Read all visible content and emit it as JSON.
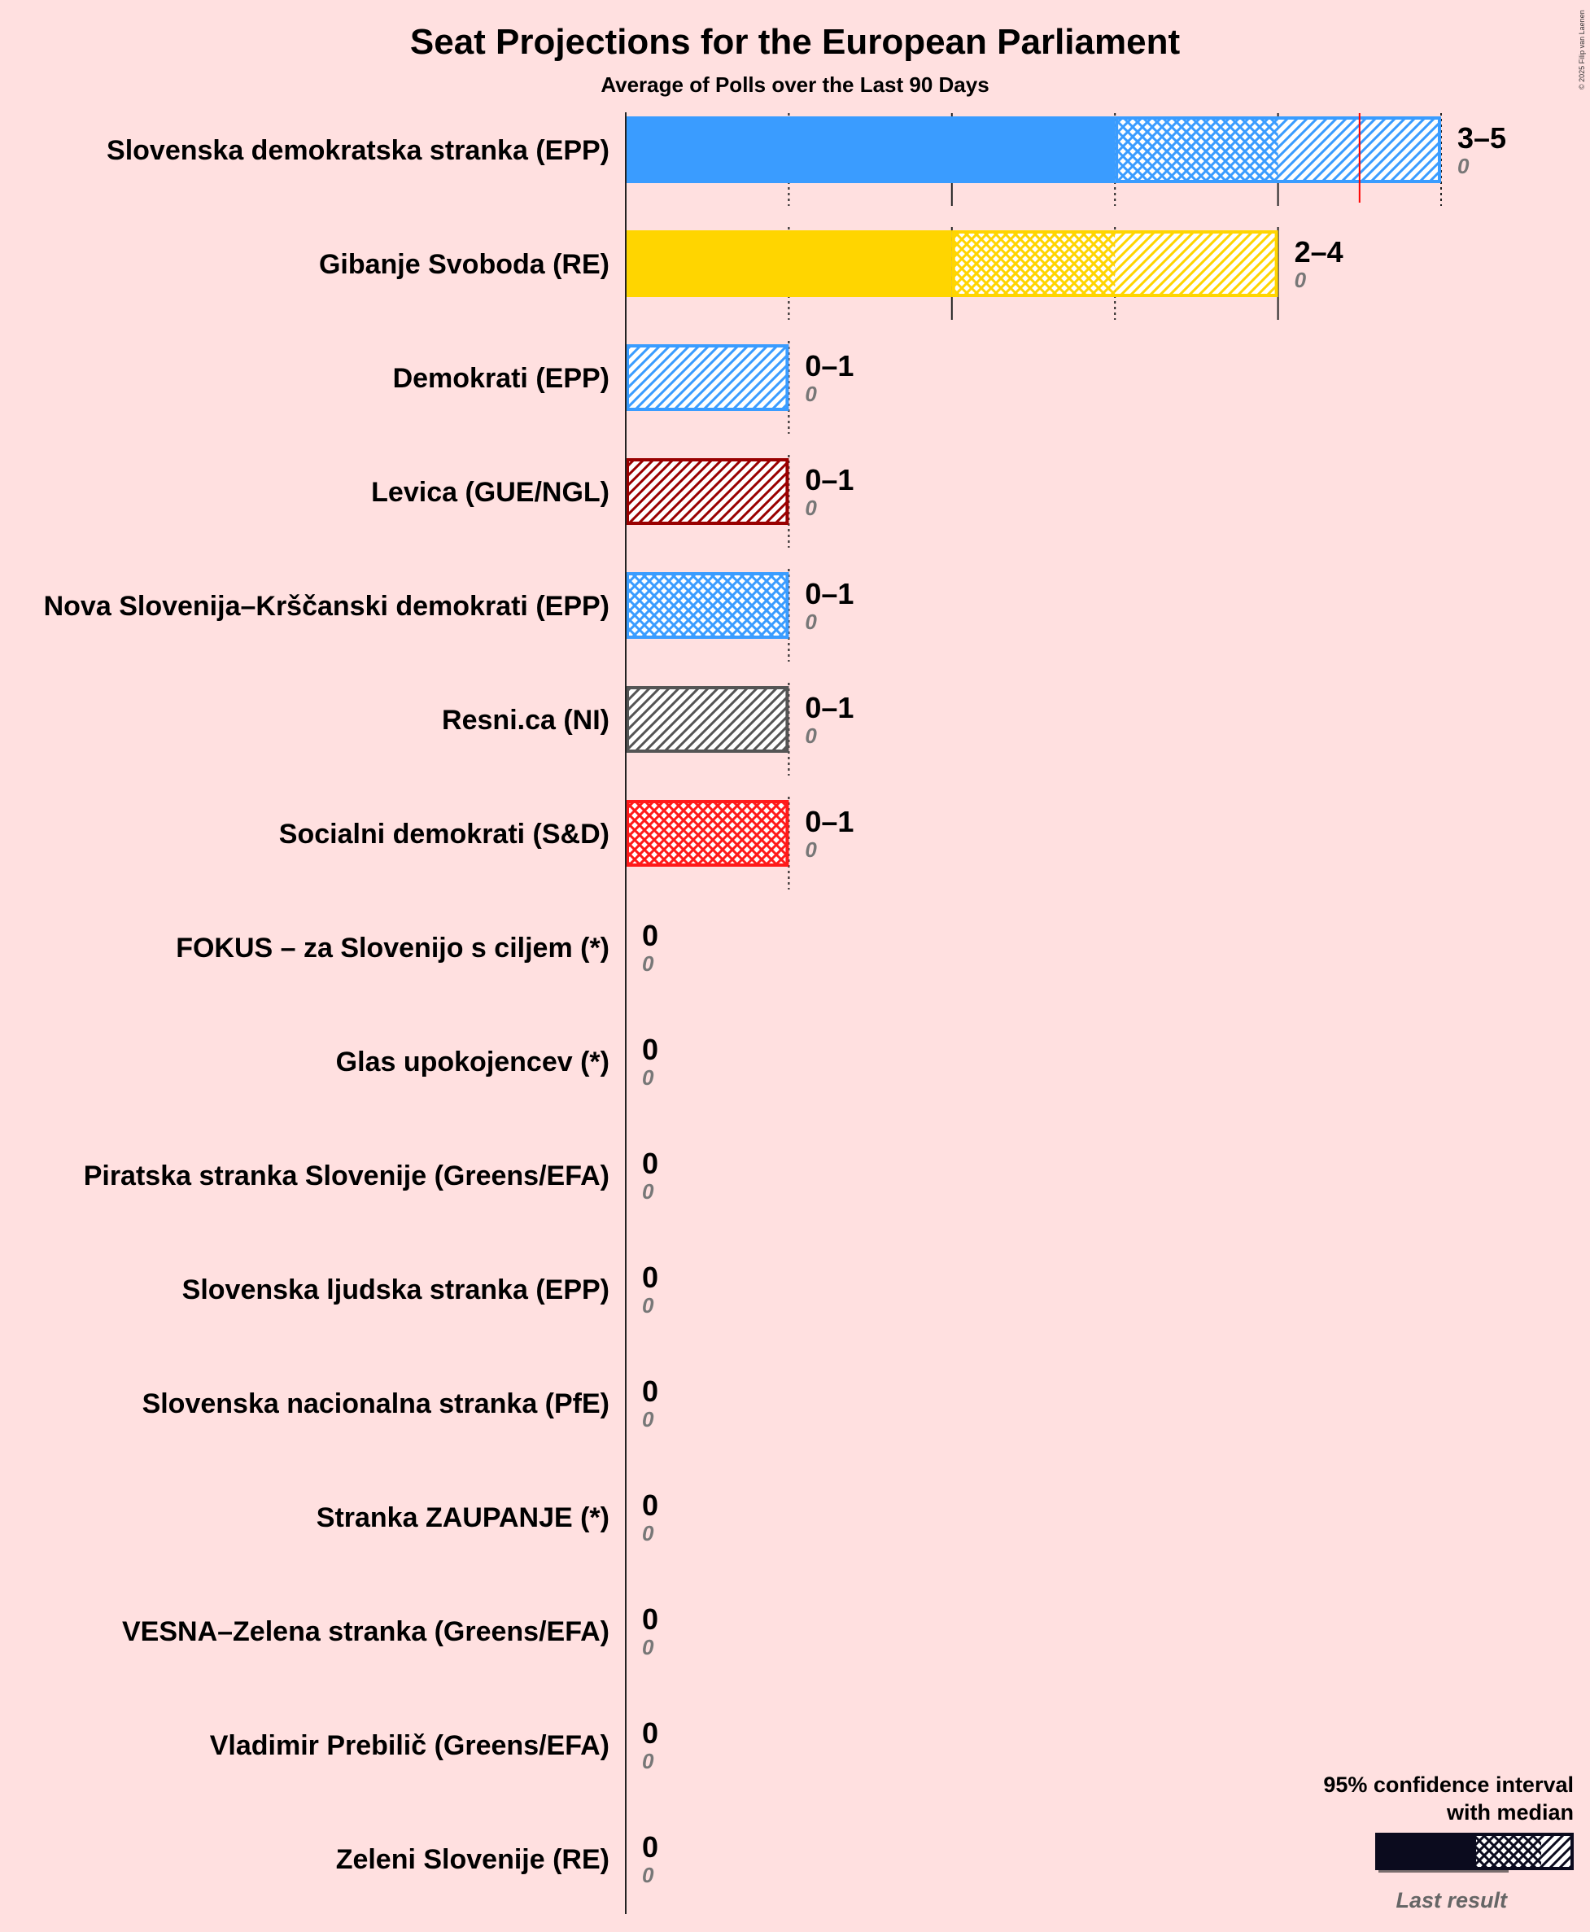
{
  "chart_data": {
    "type": "bar",
    "title": "Seat Projections for the European Parliament",
    "subtitle": "Average of Polls over the Last 90 Days",
    "copyright": "© 2025 Filip van Laenen",
    "orientation": "horizontal",
    "xlim": [
      0,
      5
    ],
    "series": [
      {
        "party": "Slovenska demokratska stranka (EPP)",
        "ci_low": 3,
        "median": 4,
        "ci_high": 5,
        "range_label": "3–5",
        "last_result": 0,
        "last_result_label": "0",
        "color": "#3a9cff",
        "majority_marker": 4.5
      },
      {
        "party": "Gibanje Svoboda (RE)",
        "ci_low": 2,
        "median": 3,
        "ci_high": 4,
        "range_label": "2–4",
        "last_result": 0,
        "last_result_label": "0",
        "color": "#ffd500"
      },
      {
        "party": "Demokrati (EPP)",
        "ci_low": 0,
        "median": 0,
        "ci_high": 1,
        "range_label": "0–1",
        "last_result": 0,
        "last_result_label": "0",
        "color": "#3a9cff"
      },
      {
        "party": "Levica (GUE/NGL)",
        "ci_low": 0,
        "median": 0,
        "ci_high": 1,
        "range_label": "0–1",
        "last_result": 0,
        "last_result_label": "0",
        "color": "#990000"
      },
      {
        "party": "Nova Slovenija–Krščanski demokrati (EPP)",
        "ci_low": 0,
        "median": 1,
        "ci_high": 1,
        "range_label": "0–1",
        "last_result": 0,
        "last_result_label": "0",
        "color": "#3a9cff"
      },
      {
        "party": "Resni.ca (NI)",
        "ci_low": 0,
        "median": 0,
        "ci_high": 1,
        "range_label": "0–1",
        "last_result": 0,
        "last_result_label": "0",
        "color": "#555555"
      },
      {
        "party": "Socialni demokrati (S&D)",
        "ci_low": 0,
        "median": 1,
        "ci_high": 1,
        "range_label": "0–1",
        "last_result": 0,
        "last_result_label": "0",
        "color": "#ff1a1a"
      },
      {
        "party": "FOKUS – za Slovenijo s ciljem (*)",
        "ci_low": 0,
        "median": 0,
        "ci_high": 0,
        "range_label": "0",
        "last_result": 0,
        "last_result_label": "0",
        "color": "#555555"
      },
      {
        "party": "Glas upokojencev (*)",
        "ci_low": 0,
        "median": 0,
        "ci_high": 0,
        "range_label": "0",
        "last_result": 0,
        "last_result_label": "0",
        "color": "#555555"
      },
      {
        "party": "Piratska stranka Slovenije (Greens/EFA)",
        "ci_low": 0,
        "median": 0,
        "ci_high": 0,
        "range_label": "0",
        "last_result": 0,
        "last_result_label": "0",
        "color": "#555555"
      },
      {
        "party": "Slovenska ljudska stranka (EPP)",
        "ci_low": 0,
        "median": 0,
        "ci_high": 0,
        "range_label": "0",
        "last_result": 0,
        "last_result_label": "0",
        "color": "#555555"
      },
      {
        "party": "Slovenska nacionalna stranka (PfE)",
        "ci_low": 0,
        "median": 0,
        "ci_high": 0,
        "range_label": "0",
        "last_result": 0,
        "last_result_label": "0",
        "color": "#555555"
      },
      {
        "party": "Stranka ZAUPANJE (*)",
        "ci_low": 0,
        "median": 0,
        "ci_high": 0,
        "range_label": "0",
        "last_result": 0,
        "last_result_label": "0",
        "color": "#555555"
      },
      {
        "party": "VESNA–Zelena stranka (Greens/EFA)",
        "ci_low": 0,
        "median": 0,
        "ci_high": 0,
        "range_label": "0",
        "last_result": 0,
        "last_result_label": "0",
        "color": "#555555"
      },
      {
        "party": "Vladimir Prebilič (Greens/EFA)",
        "ci_low": 0,
        "median": 0,
        "ci_high": 0,
        "range_label": "0",
        "last_result": 0,
        "last_result_label": "0",
        "color": "#555555"
      },
      {
        "party": "Zeleni Slovenije (RE)",
        "ci_low": 0,
        "median": 0,
        "ci_high": 0,
        "range_label": "0",
        "last_result": 0,
        "last_result_label": "0",
        "color": "#555555"
      }
    ],
    "legend": {
      "line1": "95% confidence interval",
      "line2": "with median",
      "last_result": "Last result",
      "placement": "bottom-right"
    }
  }
}
